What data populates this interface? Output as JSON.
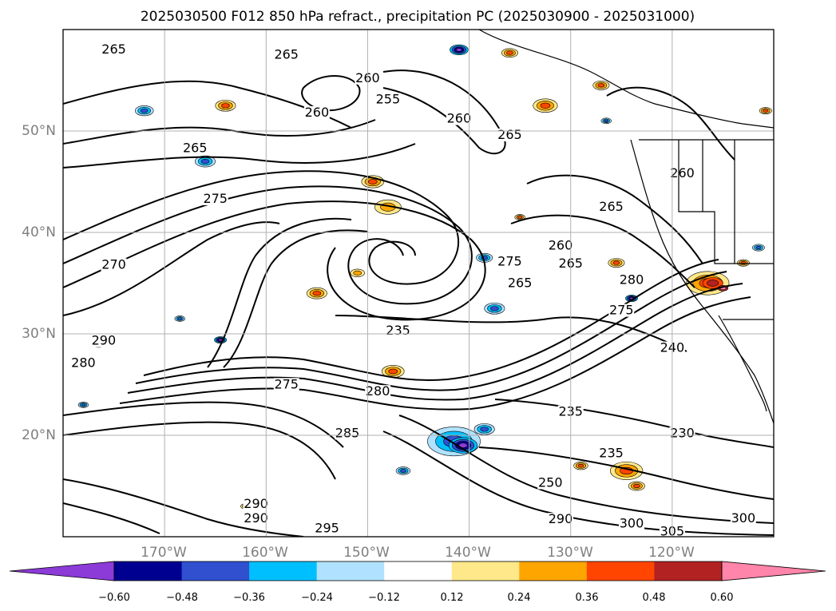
{
  "title": "2025030500 F012 850 hPa refract., precipitation PC (2025030900 - 2025031000)",
  "map": {
    "lon_range": [
      -180,
      -110
    ],
    "lat_range": [
      10,
      60
    ],
    "lon_ticks": [
      "170°W",
      "160°W",
      "150°W",
      "140°W",
      "130°W",
      "120°W"
    ],
    "lat_ticks": [
      "50°N",
      "40°N",
      "30°N",
      "20°N"
    ],
    "grid": true,
    "contour_labels": [
      {
        "text": "265",
        "lon": -175,
        "lat": 57.7
      },
      {
        "text": "265",
        "lon": -167,
        "lat": 48.0
      },
      {
        "text": "265",
        "lon": -158,
        "lat": 57.2
      },
      {
        "text": "260",
        "lon": -155,
        "lat": 51.5
      },
      {
        "text": "260",
        "lon": -150,
        "lat": 54.9
      },
      {
        "text": "255",
        "lon": -148,
        "lat": 52.8
      },
      {
        "text": "260",
        "lon": -141,
        "lat": 50.9
      },
      {
        "text": "265",
        "lon": -136,
        "lat": 49.3
      },
      {
        "text": "275",
        "lon": -165,
        "lat": 43.0
      },
      {
        "text": "270",
        "lon": -175,
        "lat": 36.5
      },
      {
        "text": "275",
        "lon": -136,
        "lat": 36.8
      },
      {
        "text": "260",
        "lon": -131,
        "lat": 38.4
      },
      {
        "text": "265",
        "lon": -130,
        "lat": 36.6
      },
      {
        "text": "265",
        "lon": -135,
        "lat": 34.7
      },
      {
        "text": "265",
        "lon": -126,
        "lat": 42.2
      },
      {
        "text": "260",
        "lon": -119,
        "lat": 45.5
      },
      {
        "text": "275",
        "lon": -125,
        "lat": 32.0
      },
      {
        "text": "280",
        "lon": -124,
        "lat": 35.0
      },
      {
        "text": "235",
        "lon": -147,
        "lat": 30.0
      },
      {
        "text": "240",
        "lon": -120,
        "lat": 28.3
      },
      {
        "text": "280",
        "lon": -178,
        "lat": 26.8
      },
      {
        "text": "290",
        "lon": -176,
        "lat": 29.0
      },
      {
        "text": "275",
        "lon": -158,
        "lat": 24.7
      },
      {
        "text": "280",
        "lon": -149,
        "lat": 24.0
      },
      {
        "text": "285",
        "lon": -152,
        "lat": 19.9
      },
      {
        "text": "235",
        "lon": -130,
        "lat": 22.0
      },
      {
        "text": "230",
        "lon": -119,
        "lat": 19.9
      },
      {
        "text": "235",
        "lon": -126,
        "lat": 17.9
      },
      {
        "text": "250",
        "lon": -132,
        "lat": 15.0
      },
      {
        "text": "290",
        "lon": -161,
        "lat": 12.9
      },
      {
        "text": "290",
        "lon": -161,
        "lat": 11.5
      },
      {
        "text": "295",
        "lon": -154,
        "lat": 10.5
      },
      {
        "text": "290",
        "lon": -131,
        "lat": 11.4
      },
      {
        "text": "300",
        "lon": -124,
        "lat": 11.0
      },
      {
        "text": "305",
        "lon": -120,
        "lat": 10.2
      },
      {
        "text": "300",
        "lon": -113,
        "lat": 11.5
      }
    ]
  },
  "colorbar": {
    "ticks": [
      "−0.60",
      "−0.48",
      "−0.36",
      "−0.24",
      "−0.12",
      "0.12",
      "0.24",
      "0.36",
      "0.48",
      "0.60"
    ],
    "colors": [
      "#8c3ad8",
      "#000090",
      "#3050d0",
      "#00bfff",
      "#b0e2ff",
      "#ffffff",
      "#ffe88a",
      "#ffa500",
      "#ff4500",
      "#b22222",
      "#ff85aa"
    ]
  },
  "precip_cells": [
    {
      "lon": -141.5,
      "lat": 19.4,
      "r": 2.6,
      "level": "neg"
    },
    {
      "lon": -140.6,
      "lat": 19.0,
      "r": 1.4,
      "level": "neg-strong"
    },
    {
      "lon": -146.5,
      "lat": 16.5,
      "r": 0.7,
      "level": "neg"
    },
    {
      "lon": -138.5,
      "lat": 20.6,
      "r": 1.0,
      "level": "neg"
    },
    {
      "lon": -149.5,
      "lat": 45.0,
      "r": 1.1,
      "level": "pos"
    },
    {
      "lon": -148.0,
      "lat": 42.5,
      "r": 1.3,
      "level": "pos-light"
    },
    {
      "lon": -155.0,
      "lat": 34.0,
      "r": 1.0,
      "level": "pos"
    },
    {
      "lon": -151.0,
      "lat": 36.0,
      "r": 0.7,
      "level": "pos-light"
    },
    {
      "lon": -147.5,
      "lat": 26.3,
      "r": 1.1,
      "level": "pos"
    },
    {
      "lon": -164.0,
      "lat": 52.5,
      "r": 1.0,
      "level": "pos"
    },
    {
      "lon": -172.0,
      "lat": 52.0,
      "r": 0.9,
      "level": "neg"
    },
    {
      "lon": -141.0,
      "lat": 58.0,
      "r": 0.9,
      "level": "neg-strong"
    },
    {
      "lon": -166.0,
      "lat": 47.0,
      "r": 1.0,
      "level": "neg"
    },
    {
      "lon": -137.5,
      "lat": 32.5,
      "r": 1.0,
      "level": "neg"
    },
    {
      "lon": -138.5,
      "lat": 37.5,
      "r": 0.8,
      "level": "neg"
    },
    {
      "lon": -132.5,
      "lat": 52.5,
      "r": 1.2,
      "level": "pos"
    },
    {
      "lon": -127.0,
      "lat": 54.5,
      "r": 0.8,
      "level": "pos"
    },
    {
      "lon": -136.0,
      "lat": 57.7,
      "r": 0.8,
      "level": "pos"
    },
    {
      "lon": -116.5,
      "lat": 35.0,
      "r": 2.1,
      "level": "pos"
    },
    {
      "lon": -116.0,
      "lat": 35.0,
      "r": 1.0,
      "level": "pos-strong"
    },
    {
      "lon": -115.0,
      "lat": 34.5,
      "r": 0.5,
      "level": "pos-max"
    },
    {
      "lon": -125.5,
      "lat": 37.0,
      "r": 0.8,
      "level": "pos"
    },
    {
      "lon": -124.0,
      "lat": 33.5,
      "r": 0.6,
      "level": "neg-strong"
    },
    {
      "lon": -124.5,
      "lat": 16.5,
      "r": 1.6,
      "level": "pos"
    },
    {
      "lon": -129.0,
      "lat": 17.0,
      "r": 0.7,
      "level": "pos"
    },
    {
      "lon": -123.5,
      "lat": 15.0,
      "r": 0.8,
      "level": "pos"
    },
    {
      "lon": -176.5,
      "lat": 29.0,
      "r": 0.6,
      "level": "pos"
    },
    {
      "lon": -164.5,
      "lat": 29.4,
      "r": 0.6,
      "level": "neg-strong"
    },
    {
      "lon": -168.5,
      "lat": 31.5,
      "r": 0.5,
      "level": "neg"
    },
    {
      "lon": -178.0,
      "lat": 23.0,
      "r": 0.5,
      "level": "neg"
    },
    {
      "lon": -162.0,
      "lat": 13.0,
      "r": 0.5,
      "level": "pos"
    },
    {
      "lon": -135.0,
      "lat": 41.5,
      "r": 0.5,
      "level": "pos"
    },
    {
      "lon": -126.5,
      "lat": 51.0,
      "r": 0.5,
      "level": "neg"
    },
    {
      "lon": -110.8,
      "lat": 52.0,
      "r": 0.6,
      "level": "pos"
    },
    {
      "lon": -111.5,
      "lat": 38.5,
      "r": 0.6,
      "level": "neg"
    },
    {
      "lon": -113.0,
      "lat": 37.0,
      "r": 0.6,
      "level": "pos"
    }
  ]
}
